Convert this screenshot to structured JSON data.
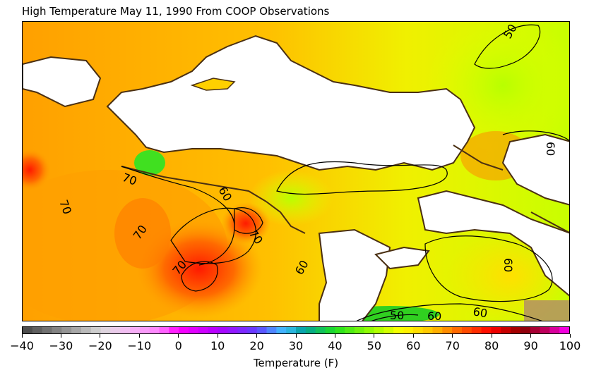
{
  "title": "High Temperature May 11, 1990 From COOP Observations",
  "colorbar": {
    "label": "Temperature (F)",
    "ticks": [
      "−40",
      "−30",
      "−20",
      "−10",
      "0",
      "10",
      "20",
      "30",
      "40",
      "50",
      "60",
      "70",
      "80",
      "90",
      "100"
    ],
    "range": [
      -40,
      100
    ],
    "step": 2.5
  },
  "contours": {
    "levels": [
      50,
      60,
      70
    ],
    "labels": [
      "50",
      "60",
      "60",
      "70",
      "70",
      "70",
      "70",
      "60",
      "60",
      "50",
      "60",
      "60"
    ]
  },
  "colors": {
    "water": "#ffffff",
    "coast": "#4a2f12",
    "warm": "#ff9f00",
    "mild": "#ffe600",
    "cool": "#d4ff00",
    "hot": "#ff2200"
  }
}
